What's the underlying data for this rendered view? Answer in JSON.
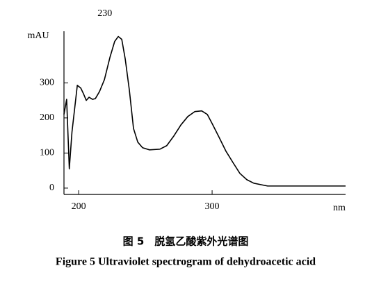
{
  "chart_data": {
    "type": "line",
    "title": "图 5　脱氢乙酸紫外光谱图",
    "subtitle": "Figure 5    Ultraviolet spectrogram of dehydroacetic acid",
    "x_label": "nm",
    "y_label": "mAU",
    "annotations": [
      {
        "text": "230",
        "x": 230
      }
    ],
    "x": [
      189,
      191,
      193,
      195,
      199,
      201.6,
      203.6,
      205.7,
      207.8,
      210.4,
      212.5,
      215.6,
      219.3,
      223.4,
      227,
      229.7,
      232.3,
      234.9,
      238,
      241.1,
      244.3,
      247.9,
      253.1,
      260.9,
      266,
      271.4,
      276.6,
      281.8,
      287,
      292.2,
      296.4,
      300,
      305.2,
      310.4,
      315.6,
      320.8,
      326,
      331.2,
      336.4,
      341.6,
      349.4,
      375.4,
      400
    ],
    "series": [
      {
        "color": "#000000",
        "values": [
          210,
          253,
          55,
          160,
          293,
          285,
          269,
          250,
          259,
          253,
          255,
          275,
          309,
          372,
          418,
          432,
          424,
          368,
          279,
          170,
          131,
          115,
          109,
          111,
          121,
          149,
          180,
          204,
          218,
          220,
          210,
          184,
          145,
          105,
          73,
          42,
          24,
          14,
          10,
          6,
          6,
          6,
          6
        ]
      }
    ],
    "xlim": [
      189,
      400
    ],
    "ylim": [
      -18,
      447
    ],
    "xticks": [
      200,
      300
    ],
    "yticks": [
      0,
      100,
      200,
      300
    ]
  }
}
